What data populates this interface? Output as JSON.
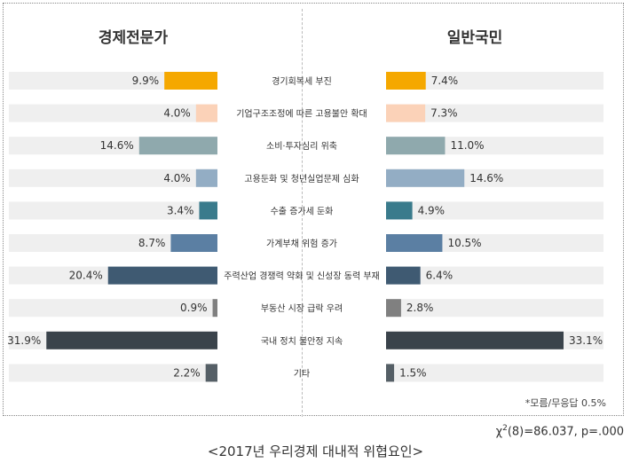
{
  "panels": {
    "left_title": "경제전문가",
    "right_title": "일반국민"
  },
  "note": "*모름/무응답 0.5%",
  "stat": {
    "chi_symbol": "χ",
    "chi_power": "2",
    "chi_rest": "(8)=86.037,  p=.000"
  },
  "caption": "<2017년 우리경제 대내적 위협요인>",
  "chart_data": {
    "type": "bar",
    "orientation": "horizontal-butterfly",
    "categories": [
      "경기회복세 부진",
      "기업구조조정에 따른 고용불안 확대",
      "소비·투자심리 위축",
      "고용둔화 및 청년실업문제 심화",
      "수출 증가세 둔화",
      "가계부채 위험 증가",
      "주력산업 경쟁력 약화 및 신성장 동력 부재",
      "부동산 시장 급락 우려",
      "국내 정치 불안정 지속",
      "기타"
    ],
    "series": [
      {
        "name": "경제전문가",
        "values": [
          9.9,
          4.0,
          14.6,
          4.0,
          3.4,
          8.7,
          20.4,
          0.9,
          31.9,
          2.2
        ]
      },
      {
        "name": "일반국민",
        "values": [
          7.4,
          7.3,
          11.0,
          14.6,
          4.9,
          10.5,
          6.4,
          2.8,
          33.1,
          1.5
        ]
      }
    ],
    "value_labels": {
      "left": [
        "9.9%",
        "4.0%",
        "14.6%",
        "4.0%",
        "3.4%",
        "8.7%",
        "20.4%",
        "0.9%",
        "31.9%",
        "2.2%"
      ],
      "right": [
        "7.4%",
        "7.3%",
        "11.0%",
        "14.6%",
        "4.9%",
        "10.5%",
        "6.4%",
        "2.8%",
        "33.1%",
        "1.5%"
      ]
    },
    "bar_colors": [
      "#f5a800",
      "#fbd2b8",
      "#8fa9ad",
      "#93adc4",
      "#3a7b8c",
      "#5b7fa3",
      "#3f5a72",
      "#808080",
      "#3a434b",
      "#555f66"
    ],
    "track_color": "#efefef",
    "xlim": [
      0,
      33.1
    ]
  }
}
